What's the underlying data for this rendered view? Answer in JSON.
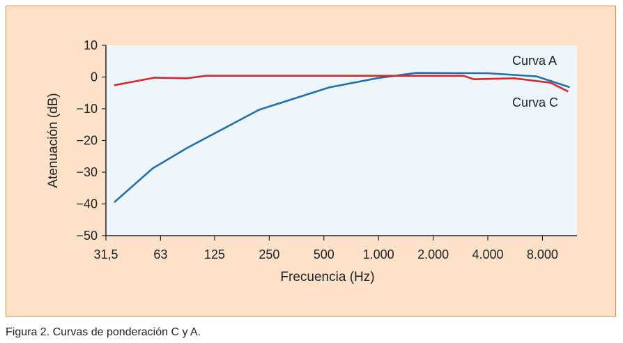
{
  "caption": "Figura 2. Curvas de ponderación C y A.",
  "chart_data": {
    "type": "line",
    "title": "",
    "xlabel": "Frecuencia (Hz)",
    "ylabel": "Atenuación (dB)",
    "xscale": "log2",
    "xlim": [
      31.5,
      12400
    ],
    "ylim": [
      -50,
      10
    ],
    "x_ticks": [
      31.5,
      63,
      125,
      250,
      500,
      1000,
      2000,
      4000,
      8000
    ],
    "x_tick_labels": [
      "31,5",
      "63",
      "125",
      "250",
      "500",
      "1.000",
      "2.000",
      "4.000",
      "8.000"
    ],
    "y_ticks": [
      10,
      0,
      -10,
      -20,
      -30,
      -40,
      -50
    ],
    "y_tick_labels": [
      "10",
      "0",
      "−10",
      "−20",
      "−30",
      "−40",
      "−50"
    ],
    "grid": false,
    "series": [
      {
        "name": "Curva A",
        "color": "#1f6fb0",
        "x": [
          35,
          57,
          88,
          220,
          533,
          973,
          1610,
          4000,
          7430,
          11300
        ],
        "y": [
          -39.5,
          -28.8,
          -22.4,
          -10.3,
          -3.3,
          -0.4,
          1.3,
          1.2,
          0.2,
          -3.2
        ]
      },
      {
        "name": "Curva C",
        "color": "#d9262e",
        "x": [
          35,
          58.5,
          88,
          112,
          2934,
          3350,
          5590,
          8870,
          11090
        ],
        "y": [
          -2.6,
          -0.2,
          -0.4,
          0.4,
          0.4,
          -0.7,
          -0.4,
          -1.8,
          -4.6
        ]
      }
    ]
  }
}
